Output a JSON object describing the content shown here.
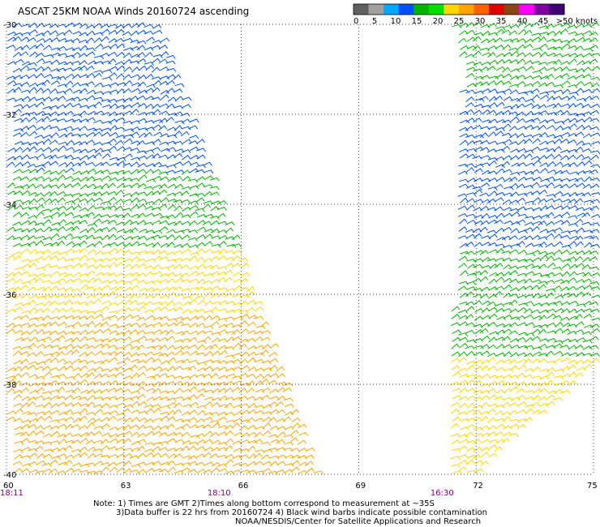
{
  "title": "ASCAT 25KM NOAA Winds 20160724 ascending",
  "legend": {
    "ticks": [
      "0",
      "5",
      "10",
      "15",
      "20",
      "25",
      "30",
      "35",
      "40",
      "45",
      ">50 knots"
    ],
    "colors": [
      "#606060",
      "#a0a0a0",
      "#00a8ff",
      "#0050ff",
      "#00b400",
      "#00e000",
      "#ffd700",
      "#ffa500",
      "#ff6000",
      "#e00000",
      "#8b4513",
      "#ff00ff",
      "#8000a0",
      "#400070"
    ]
  },
  "axes": {
    "lat_labels": [
      "-30",
      "-32",
      "-34",
      "-36",
      "-38",
      "-40"
    ],
    "lon_labels": [
      "60",
      "63",
      "66",
      "69",
      "72",
      "75"
    ],
    "lon_range": [
      60,
      75
    ],
    "lat_range": [
      -30,
      -40
    ]
  },
  "time_labels": [
    {
      "text": "18:11",
      "lon": 60.0
    },
    {
      "text": "18:10",
      "lon": 65.3
    },
    {
      "text": "16:30",
      "lon": 71.0
    }
  ],
  "notes": [
    "Note: 1) Times are GMT 2)Times along bottom correspond to measurement at ~35S",
    "3)Data buffer is 22 hrs from 20160724 4) Black wind barbs indicate possible contamination",
    "NOAA/NESDIS/Center for Satellite Applications and Research"
  ],
  "swaths": [
    {
      "name": "west-swath",
      "edges": [
        [
          60.0,
          -30.0
        ],
        [
          63.8,
          -30.0
        ],
        [
          67.9,
          -40.0
        ],
        [
          60.0,
          -40.0
        ]
      ],
      "color_bands": [
        {
          "from_lat": -30.0,
          "to_lat": -33.3,
          "color": "#0050ff"
        },
        {
          "from_lat": -33.3,
          "to_lat": -35.0,
          "color": "#00b400"
        },
        {
          "from_lat": -35.0,
          "to_lat": -36.5,
          "color": "#ffd700"
        },
        {
          "from_lat": -36.5,
          "to_lat": -40.0,
          "color": "#ffa500"
        }
      ]
    },
    {
      "name": "east-swath",
      "edges": [
        [
          71.3,
          -30.0
        ],
        [
          75.0,
          -30.0
        ],
        [
          75.0,
          -37.5
        ],
        [
          72.0,
          -40.0
        ],
        [
          71.2,
          -40.0
        ],
        [
          71.6,
          -31.0
        ]
      ],
      "color_bands": [
        {
          "from_lat": -30.0,
          "to_lat": -31.5,
          "color": "#00b400"
        },
        {
          "from_lat": -31.5,
          "to_lat": -35.0,
          "color": "#0050ff"
        },
        {
          "from_lat": -35.0,
          "to_lat": -37.5,
          "color": "#00b400"
        },
        {
          "from_lat": -37.5,
          "to_lat": -40.0,
          "color": "#ffd700"
        }
      ]
    }
  ]
}
